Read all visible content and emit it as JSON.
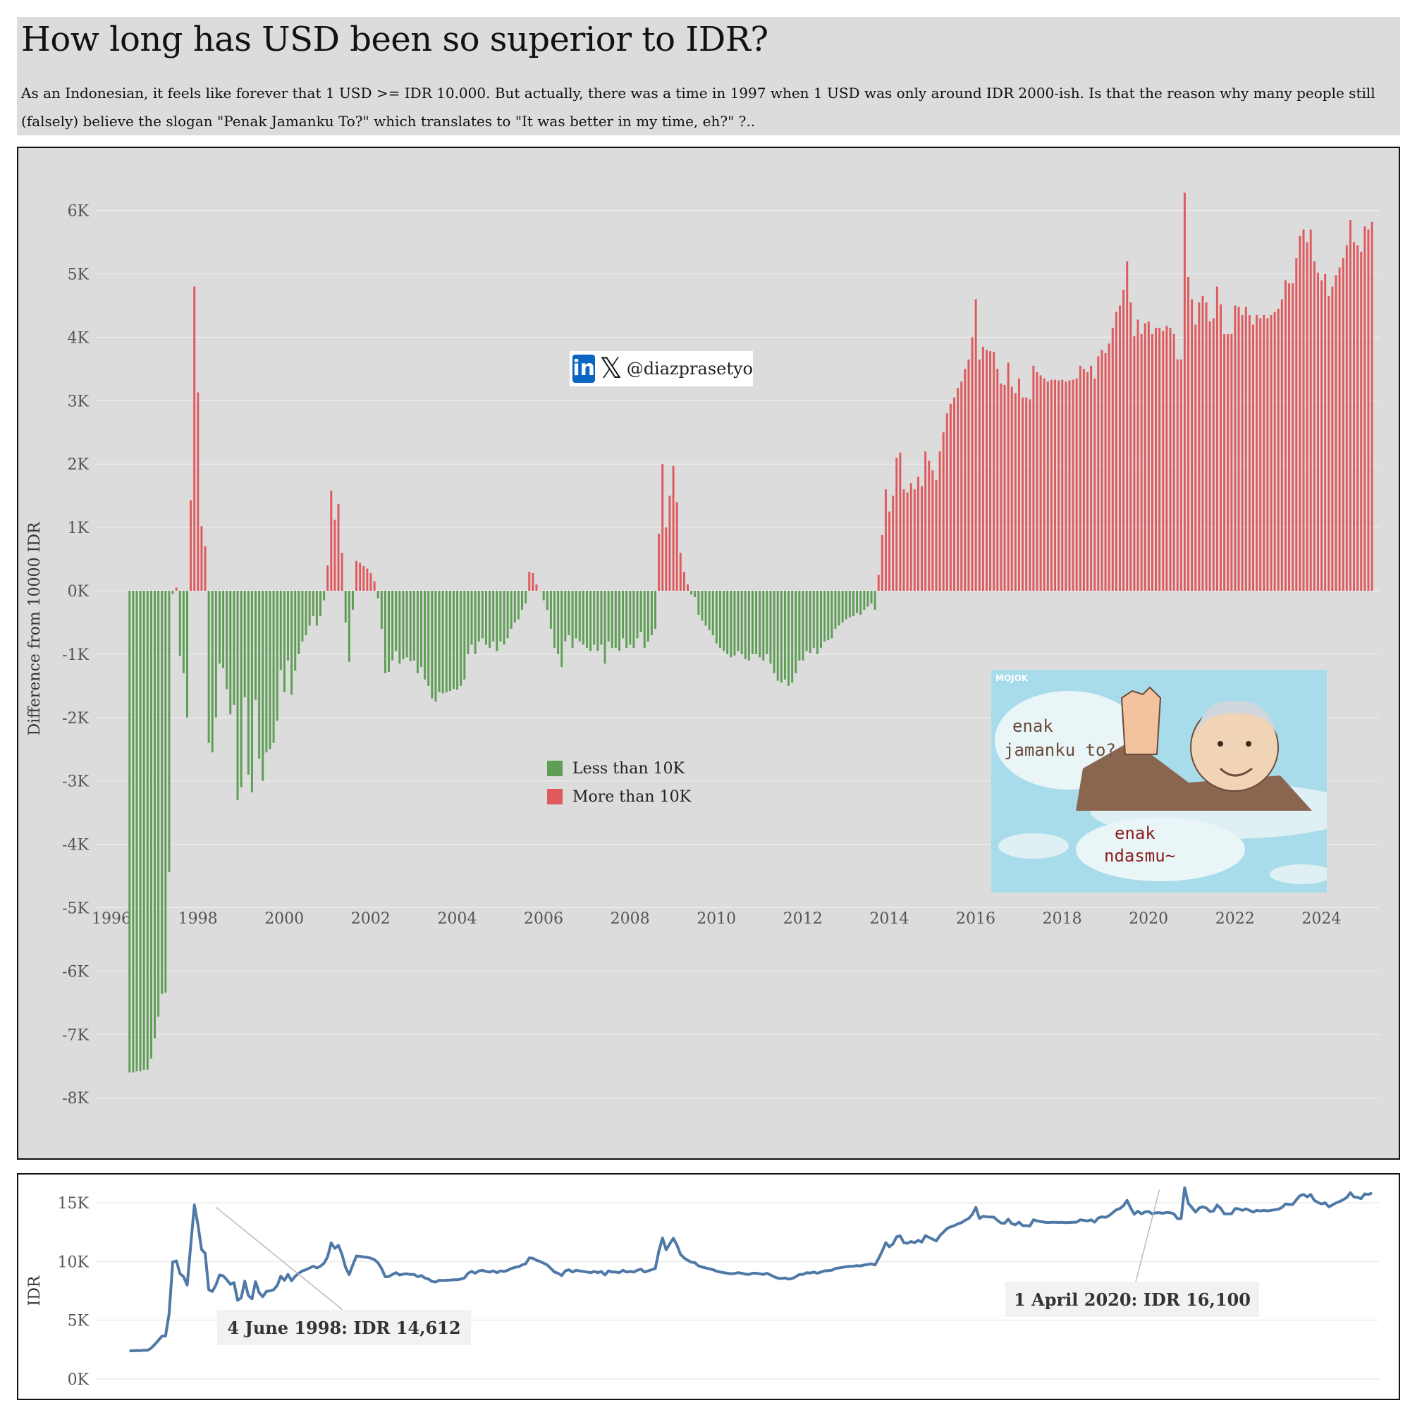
{
  "header": {
    "title": "How long has USD been so superior to IDR?",
    "subtitle": "As an Indonesian, it feels like forever that 1 USD >= IDR 10.000. But actually, there was a time in 1997 when 1 USD was only around IDR 2000-ish. Is that the reason why many people still (falsely) believe the slogan \"Penak Jamanku To?\" which translates to \"It was better in my time, eh?\" ?.."
  },
  "watermark": {
    "handle": "@diazprasetyo",
    "icons": [
      "linkedin-icon",
      "x-icon"
    ]
  },
  "cartoon": {
    "logo": "MOJOK",
    "bubble1_line1": "enak",
    "bubble1_line2": "jamanku to?",
    "bubble2_line1": "enak",
    "bubble2_line2": "ndasmu~"
  },
  "colors": {
    "negative": "#5e9e55",
    "positive": "#e05a5d",
    "line": "#4e79a7",
    "panel_bg": "#dcdcdc"
  },
  "chart_data": [
    {
      "type": "bar",
      "ylabel": "Difference from 10000 IDR",
      "ylim": [
        -8200,
        6700
      ],
      "y_ticks": [
        6000,
        5000,
        4000,
        3000,
        2000,
        1000,
        0,
        -1000,
        -2000,
        -3000,
        -4000,
        -5000,
        -6000,
        -7000,
        -8000
      ],
      "y_tick_labels": [
        "6K",
        "5K",
        "4K",
        "3K",
        "2K",
        "1K",
        "0K",
        "-1K",
        "-2K",
        "-3K",
        "-4K",
        "-5K",
        "-6K",
        "-7K",
        "-8K"
      ],
      "xlim": [
        1995.6,
        2024.2
      ],
      "x_ticks": [
        1996,
        1998,
        2000,
        2002,
        2004,
        2006,
        2008,
        2010,
        2012,
        2014,
        2016,
        2018,
        2020,
        2022,
        2024
      ],
      "x_tick_labels": [
        "1996",
        "1998",
        "2000",
        "2002",
        "2004",
        "2006",
        "2008",
        "2010",
        "2012",
        "2014",
        "2016",
        "2018",
        "2020",
        "2022",
        "2024"
      ],
      "legend": [
        {
          "label": "Less than 10K",
          "color": "#5e9e55"
        },
        {
          "label": "More than 10K",
          "color": "#e05a5d"
        }
      ],
      "legend_position": "center",
      "grid": true,
      "start": 1996.42,
      "step": 0.08333,
      "values": [
        -7600,
        -7600,
        -7580,
        -7580,
        -7560,
        -7560,
        -7380,
        -7060,
        -6720,
        -6360,
        -6340,
        -4440,
        -50,
        50,
        -1030,
        -1300,
        -2000,
        1430,
        4800,
        3130,
        1020,
        700,
        -2400,
        -2550,
        -2000,
        -1150,
        -1220,
        -1550,
        -1950,
        -1800,
        -3300,
        -3100,
        -1680,
        -2900,
        -3180,
        -1720,
        -2650,
        -3000,
        -2550,
        -2500,
        -2400,
        -2050,
        -1250,
        -1600,
        -1100,
        -1640,
        -1260,
        -1000,
        -800,
        -700,
        -550,
        -400,
        -550,
        -400,
        -150,
        400,
        1580,
        1120,
        1370,
        600,
        -500,
        -1120,
        -300,
        470,
        440,
        390,
        350,
        280,
        150,
        -120,
        -600,
        -1300,
        -1280,
        -1100,
        -950,
        -1150,
        -1080,
        -1050,
        -1110,
        -1100,
        -1300,
        -1200,
        -1400,
        -1500,
        -1700,
        -1750,
        -1600,
        -1620,
        -1600,
        -1580,
        -1550,
        -1560,
        -1500,
        -1400,
        -1000,
        -850,
        -1000,
        -800,
        -750,
        -850,
        -900,
        -800,
        -950,
        -800,
        -850,
        -750,
        -600,
        -500,
        -450,
        -300,
        -200,
        300,
        280,
        100,
        0,
        -150,
        -300,
        -600,
        -900,
        -1000,
        -1200,
        -800,
        -700,
        -900,
        -750,
        -800,
        -850,
        -900,
        -950,
        -850,
        -950,
        -850,
        -1150,
        -800,
        -900,
        -900,
        -950,
        -750,
        -900,
        -850,
        -900,
        -750,
        -650,
        -900,
        -800,
        -700,
        -600,
        900,
        2000,
        1000,
        1500,
        1970,
        1400,
        600,
        300,
        100,
        -60,
        -100,
        -380,
        -470,
        -550,
        -620,
        -700,
        -830,
        -900,
        -950,
        -1000,
        -1050,
        -1020,
        -950,
        -1000,
        -1080,
        -1100,
        -1000,
        -1000,
        -1050,
        -1100,
        -1000,
        -1150,
        -1300,
        -1420,
        -1450,
        -1400,
        -1500,
        -1450,
        -1300,
        -1100,
        -1100,
        -950,
        -980,
        -900,
        -1000,
        -900,
        -800,
        -780,
        -750,
        -600,
        -550,
        -500,
        -450,
        -420,
        -400,
        -350,
        -380,
        -300,
        -250,
        -200,
        -300,
        250,
        880,
        1600,
        1250,
        1500,
        2100,
        2180,
        1600,
        1550,
        1700,
        1600,
        1800,
        1650,
        2200,
        2050,
        1900,
        1750,
        2200,
        2500,
        2800,
        2950,
        3050,
        3200,
        3300,
        3500,
        3650,
        4000,
        4600,
        3650,
        3850,
        3800,
        3780,
        3770,
        3500,
        3270,
        3250,
        3600,
        3220,
        3120,
        3350,
        3050,
        3050,
        3020,
        3550,
        3450,
        3400,
        3350,
        3300,
        3330,
        3330,
        3320,
        3330,
        3300,
        3320,
        3330,
        3350,
        3550,
        3500,
        3450,
        3550,
        3350,
        3700,
        3800,
        3750,
        3900,
        4150,
        4400,
        4500,
        4750,
        5200,
        4550,
        4020,
        4280,
        4050,
        4220,
        4250,
        4050,
        4150,
        4150,
        4100,
        4180,
        4150,
        4050,
        3650,
        3650,
        6280,
        4950,
        4600,
        4200,
        4550,
        4650,
        4550,
        4250,
        4300,
        4800,
        4520,
        4050,
        4050,
        4050,
        4500,
        4480,
        4350,
        4480,
        4350,
        4200,
        4350,
        4300,
        4350,
        4300,
        4350,
        4400,
        4450,
        4600,
        4900,
        4850,
        4850,
        5250,
        5600,
        5700,
        5500,
        5700,
        5200,
        5020,
        4900,
        5000,
        4650,
        4800,
        4980,
        5100,
        5250,
        5450,
        5850,
        5500,
        5450,
        5350,
        5750,
        5700,
        5820
      ]
    },
    {
      "type": "line",
      "ylabel": "IDR",
      "ylim": [
        -200,
        17000
      ],
      "y_ticks": [
        15000,
        10000,
        5000,
        0
      ],
      "y_tick_labels": [
        "15K",
        "10K",
        "5K",
        "0K"
      ],
      "start": 1996.42,
      "step": 0.08333,
      "annotations": [
        {
          "text": "4 June 1998: IDR 14,612",
          "x": 1998.42,
          "y": 14612
        },
        {
          "text": "1 April 2020: IDR 16,100",
          "x": 2020.25,
          "y": 16100
        }
      ]
    }
  ]
}
